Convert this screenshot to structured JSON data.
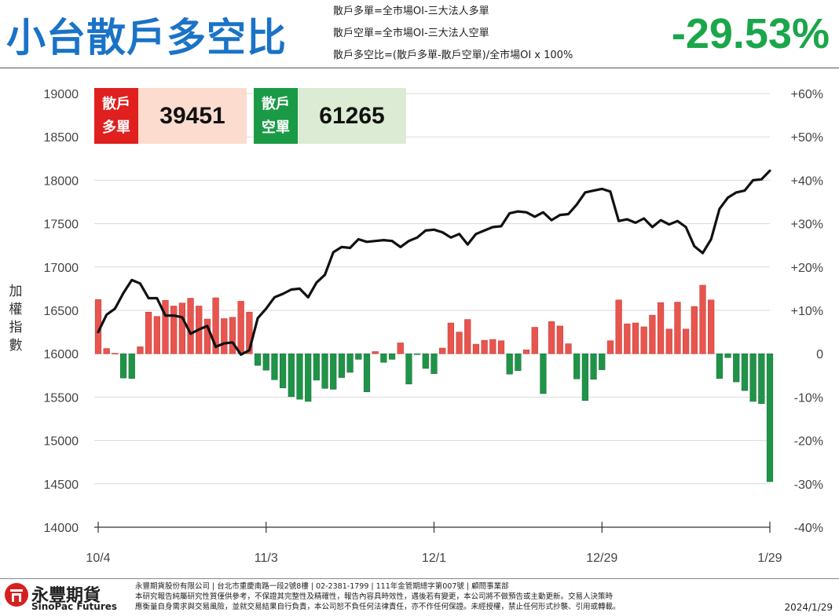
{
  "header": {
    "title": "小台散戶多空比",
    "definitions": [
      "散戶多單=全市場OI-三大法人多單",
      "散戶空單=全市場OI-三大法人空單",
      "散戶多空比=(散戶多單-散戶空單)/全市場OI x 100%"
    ],
    "ratio": "-29.53%"
  },
  "legend": {
    "long_tag": [
      "散戶",
      "多單"
    ],
    "long_value": "39451",
    "short_tag": [
      "散戶",
      "空單"
    ],
    "short_value": "61265"
  },
  "colors": {
    "title": "#1a73c7",
    "ratio": "#1aa64a",
    "long": "#e8554e",
    "long_tag": "#e01f1f",
    "long_value_bg": "#fbdccf",
    "short": "#1f9448",
    "short_tag": "#1a9a45",
    "short_value_bg": "#dcebd3",
    "index_line": "#111111"
  },
  "chart_data": {
    "type": "bar+line",
    "y_left_label": "加權指數",
    "y_left_ticks": [
      "19000",
      "18500",
      "18000",
      "17500",
      "17000",
      "16500",
      "16000",
      "15500",
      "15000",
      "14500",
      "14000"
    ],
    "y_left_range": [
      14000,
      19000
    ],
    "y_right_ticks": [
      "+60%",
      "+50%",
      "+40%",
      "+30%",
      "+20%",
      "+10%",
      "0",
      "-10%",
      "-20%",
      "-30%",
      "-40%"
    ],
    "y_right_range": [
      -40,
      60
    ],
    "x_ticks": [
      "10/4",
      "11/3",
      "12/1",
      "12/29",
      "1/29"
    ],
    "x_tick_index": [
      0,
      20,
      40,
      60,
      80
    ],
    "grid": true,
    "series": [
      {
        "name": "散戶多空比",
        "type": "bar",
        "unit": "%",
        "values": [
          12.5,
          1.2,
          0.1,
          -5.6,
          -5.7,
          1.6,
          9.6,
          8.6,
          12.3,
          11.0,
          11.7,
          12.8,
          11.0,
          8.0,
          12.9,
          8.1,
          8.4,
          12.1,
          9.6,
          -2.7,
          -3.8,
          -6.0,
          -7.9,
          -9.9,
          -10.5,
          -11.0,
          -6.1,
          -8.0,
          -8.2,
          -5.5,
          -4.3,
          -1.3,
          -8.8,
          0.5,
          -2.0,
          -1.3,
          2.5,
          -7.0,
          -0.2,
          -3.4,
          -4.6,
          1.3,
          7.1,
          5.0,
          7.9,
          2.2,
          3.1,
          3.3,
          3.0,
          -4.7,
          -3.9,
          0.9,
          6.1,
          -9.2,
          7.4,
          6.4,
          2.3,
          -5.8,
          -10.8,
          -5.9,
          -3.7,
          3.0,
          12.4,
          6.9,
          7.1,
          6.2,
          8.9,
          11.8,
          5.7,
          11.9,
          5.7,
          10.9,
          15.8,
          12.4,
          -5.7,
          -0.9,
          -6.5,
          -8.5,
          -11.0,
          -11.5,
          -29.5
        ]
      },
      {
        "name": "加權指數",
        "type": "line",
        "values": [
          16250,
          16450,
          16520,
          16700,
          16850,
          16810,
          16640,
          16640,
          16440,
          16440,
          16420,
          16230,
          16280,
          16320,
          16080,
          16120,
          16130,
          15990,
          16040,
          16410,
          16520,
          16650,
          16690,
          16740,
          16750,
          16650,
          16820,
          16910,
          17170,
          17230,
          17220,
          17320,
          17290,
          17300,
          17310,
          17300,
          17230,
          17300,
          17340,
          17420,
          17430,
          17400,
          17340,
          17380,
          17260,
          17380,
          17420,
          17460,
          17470,
          17620,
          17640,
          17630,
          17580,
          17630,
          17540,
          17600,
          17610,
          17720,
          17860,
          17880,
          17900,
          17870,
          17530,
          17550,
          17510,
          17560,
          17460,
          17540,
          17490,
          17530,
          17460,
          17240,
          17160,
          17320,
          17670,
          17800,
          17860,
          17880,
          18000,
          18010,
          18110
        ]
      }
    ]
  },
  "footer": {
    "brand_cn": "永豐期貨",
    "brand_en": "SinoPac Futures",
    "company": "永豐期貨股份有限公司 | 台北市重慶南路一段2號8樓 | 02-2381-1799 | 111年金管期總字第007號 | 顧問事業部",
    "disclaimer_1": "本研究報告純屬研究性質僅供參考，不保證其完整性及精確性，報告內容具時效性，遇後若有變更，本公司將不做預告或主動更新。交易人決策時",
    "disclaimer_2": "應衡量自身需求與交易風險，並就交易結果自行負責，本公司恕不負任何法律責任，亦不作任何保證。未經授權，禁止任何形式抄襲、引用或轉載。",
    "date": "2024/1/29"
  }
}
